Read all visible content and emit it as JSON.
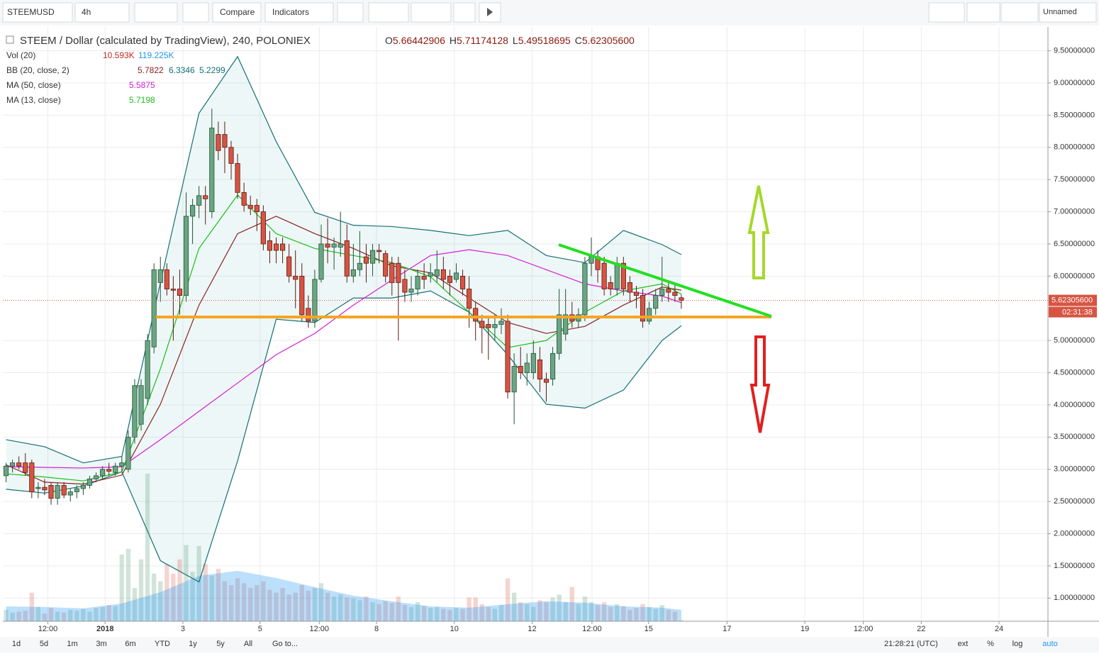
{
  "toolbar": {
    "symbol": "STEEMUSD",
    "interval": "4h",
    "compare": "Compare",
    "indicators": "Indicators",
    "layout": "Unnamed"
  },
  "chart_data": {
    "type": "candlestick",
    "title": "STEEM / Dollar (calculated by TradingView), 240, POLONIEX",
    "ohlc_letters": [
      "O",
      "H",
      "L",
      "C"
    ],
    "close_label": "5.62305600",
    "countdown": "02:31:38",
    "up_color": "#6ba583",
    "down_color": "#d75442",
    "xlim": [
      -0.5,
      162
    ],
    "ylim": [
      0.64,
      9.87
    ],
    "xticks": [
      {
        "value": 6.5,
        "label": "12:00"
      },
      {
        "value": 15.4,
        "label": "2018"
      },
      {
        "value": 27.5,
        "label": "3"
      },
      {
        "value": 39.5,
        "label": "5"
      },
      {
        "value": 48.7,
        "label": "12:00"
      },
      {
        "value": 57.6,
        "label": "8"
      },
      {
        "value": 69.7,
        "label": "10"
      },
      {
        "value": 81.8,
        "label": "12"
      },
      {
        "value": 91.1,
        "label": "12:00"
      },
      {
        "value": 99.9,
        "label": "15"
      },
      {
        "value": 112.1,
        "label": "17"
      },
      {
        "value": 124.2,
        "label": "19"
      },
      {
        "value": 133.3,
        "label": "12:00"
      },
      {
        "value": 142.3,
        "label": "22"
      },
      {
        "value": 154.4,
        "label": "24"
      }
    ],
    "yticks": [
      {
        "value": 1,
        "label": "1.00000000"
      },
      {
        "value": 1.5,
        "label": "1.50000000"
      },
      {
        "value": 2,
        "label": "2.00000000"
      },
      {
        "value": 2.5,
        "label": "2.50000000"
      },
      {
        "value": 3,
        "label": "3.00000000"
      },
      {
        "value": 3.5,
        "label": "3.50000000"
      },
      {
        "value": 4,
        "label": "4.00000000"
      },
      {
        "value": 4.5,
        "label": "4.50000000"
      },
      {
        "value": 5,
        "label": "5.00000000"
      },
      {
        "value": 6,
        "label": "6.00000000"
      },
      {
        "value": 6.5,
        "label": "6.50000000"
      },
      {
        "value": 7,
        "label": "7.00000000"
      },
      {
        "value": 7.5,
        "label": "7.50000000"
      },
      {
        "value": 8,
        "label": "8.00000000"
      },
      {
        "value": 8.5,
        "label": "8.50000000"
      },
      {
        "value": 9,
        "label": "9.00000000"
      },
      {
        "value": 9.5,
        "label": "9.50000000"
      }
    ],
    "candles": [
      [
        2.9,
        3.1,
        2.8,
        3.05
      ],
      [
        3.05,
        3.15,
        2.95,
        3.1
      ],
      [
        3.1,
        3.2,
        3.0,
        3.05
      ],
      [
        3.1,
        3.25,
        2.9,
        2.95
      ],
      [
        3.1,
        3.15,
        2.55,
        2.65
      ],
      [
        2.7,
        2.8,
        2.55,
        2.72
      ],
      [
        2.72,
        2.85,
        2.6,
        2.68
      ],
      [
        2.75,
        2.8,
        2.45,
        2.55
      ],
      [
        2.55,
        2.8,
        2.45,
        2.75
      ],
      [
        2.75,
        2.8,
        2.55,
        2.6
      ],
      [
        2.6,
        2.7,
        2.5,
        2.65
      ],
      [
        2.65,
        2.75,
        2.55,
        2.7
      ],
      [
        2.7,
        2.8,
        2.6,
        2.75
      ],
      [
        2.75,
        2.9,
        2.7,
        2.85
      ],
      [
        2.85,
        2.95,
        2.8,
        2.9
      ],
      [
        2.9,
        3.05,
        2.85,
        3.0
      ],
      [
        3.0,
        3.1,
        2.9,
        2.97
      ],
      [
        2.95,
        3.1,
        2.9,
        3.05
      ],
      [
        3.05,
        3.2,
        2.95,
        3.1
      ],
      [
        3.0,
        3.6,
        2.95,
        3.5
      ],
      [
        3.5,
        4.4,
        3.4,
        4.3
      ],
      [
        3.7,
        4.4,
        3.6,
        4.3
      ],
      [
        4.1,
        5.1,
        4.0,
        5.0
      ],
      [
        4.9,
        6.2,
        4.8,
        6.1
      ],
      [
        5.9,
        6.3,
        5.6,
        6.1
      ],
      [
        6.1,
        6.2,
        5.7,
        5.8
      ],
      [
        5.8,
        6.0,
        5.0,
        5.78
      ],
      [
        5.8,
        6.1,
        5.4,
        5.7
      ],
      [
        5.7,
        7.3,
        5.6,
        6.93
      ],
      [
        6.93,
        7.2,
        6.5,
        7.1
      ],
      [
        7.1,
        7.4,
        6.9,
        7.25
      ],
      [
        7.25,
        7.4,
        6.8,
        7.2
      ],
      [
        7.0,
        8.6,
        6.9,
        8.3
      ],
      [
        8.2,
        8.4,
        7.8,
        7.95
      ],
      [
        8.2,
        8.4,
        7.6,
        8.0
      ],
      [
        8.0,
        8.1,
        7.5,
        7.75
      ],
      [
        7.75,
        7.9,
        7.2,
        7.3
      ],
      [
        7.3,
        7.45,
        7.0,
        7.1
      ],
      [
        7.1,
        7.25,
        6.95,
        7.05
      ],
      [
        7.1,
        7.2,
        6.7,
        7.0
      ],
      [
        7.0,
        7.1,
        6.4,
        6.5
      ],
      [
        6.55,
        6.7,
        6.2,
        6.4
      ],
      [
        6.5,
        6.6,
        6.2,
        6.4
      ],
      [
        6.5,
        6.6,
        6.2,
        6.4
      ],
      [
        6.3,
        6.5,
        5.9,
        6.0
      ],
      [
        6.0,
        6.4,
        5.5,
        5.95
      ],
      [
        6.0,
        6.2,
        5.3,
        5.4
      ],
      [
        5.5,
        5.7,
        5.2,
        5.3
      ],
      [
        5.3,
        6.1,
        5.2,
        5.95
      ],
      [
        5.95,
        6.8,
        5.9,
        6.5
      ],
      [
        6.5,
        6.9,
        6.2,
        6.45
      ],
      [
        6.45,
        6.6,
        6.1,
        6.5
      ],
      [
        6.45,
        7.0,
        6.3,
        6.5
      ],
      [
        6.55,
        6.8,
        5.9,
        6.0
      ],
      [
        6.0,
        6.5,
        5.9,
        6.1
      ],
      [
        6.1,
        6.7,
        6.0,
        6.2
      ],
      [
        6.3,
        6.5,
        5.9,
        6.2
      ],
      [
        6.2,
        6.5,
        6.0,
        6.4
      ],
      [
        6.4,
        6.5,
        6.2,
        6.38
      ],
      [
        6.35,
        6.4,
        5.9,
        6.0
      ],
      [
        6.2,
        6.3,
        5.7,
        5.9
      ],
      [
        6.2,
        6.3,
        5.0,
        5.9
      ],
      [
        5.95,
        6.1,
        5.6,
        5.75
      ],
      [
        5.75,
        6.0,
        5.6,
        5.8
      ],
      [
        5.8,
        6.1,
        5.7,
        6.0
      ],
      [
        6.0,
        6.2,
        5.8,
        5.95
      ],
      [
        6.0,
        6.2,
        5.9,
        6.05
      ],
      [
        6.0,
        6.4,
        5.9,
        6.1
      ],
      [
        6.1,
        6.3,
        5.8,
        5.95
      ],
      [
        6.0,
        6.1,
        5.7,
        5.9
      ],
      [
        5.95,
        6.2,
        5.9,
        6.05
      ],
      [
        6.0,
        6.1,
        5.7,
        5.8
      ],
      [
        5.8,
        6.0,
        5.2,
        5.5
      ],
      [
        5.5,
        5.6,
        5.0,
        5.3
      ],
      [
        5.3,
        5.4,
        4.8,
        5.2
      ],
      [
        5.25,
        5.35,
        4.7,
        5.2
      ],
      [
        5.2,
        5.4,
        5.0,
        5.25
      ],
      [
        5.25,
        5.5,
        5.1,
        5.3
      ],
      [
        5.3,
        5.4,
        4.1,
        4.2
      ],
      [
        4.2,
        4.8,
        3.7,
        4.6
      ],
      [
        4.6,
        4.9,
        4.4,
        4.5
      ],
      [
        4.5,
        4.8,
        4.3,
        4.65
      ],
      [
        4.5,
        5.0,
        4.4,
        4.8
      ],
      [
        4.7,
        4.9,
        4.2,
        4.4
      ],
      [
        4.4,
        4.5,
        4.05,
        4.35
      ],
      [
        4.4,
        4.9,
        4.3,
        4.8
      ],
      [
        4.8,
        5.8,
        4.7,
        5.4
      ],
      [
        5.1,
        5.8,
        5.0,
        5.4
      ],
      [
        5.4,
        5.6,
        5.2,
        5.3
      ],
      [
        5.3,
        5.5,
        5.2,
        5.4
      ],
      [
        5.4,
        6.3,
        5.3,
        6.2
      ],
      [
        6.2,
        6.6,
        6.0,
        6.3
      ],
      [
        6.3,
        6.4,
        5.9,
        6.1
      ],
      [
        6.2,
        6.3,
        5.7,
        5.8
      ],
      [
        5.9,
        6.0,
        5.7,
        5.8
      ],
      [
        5.8,
        6.3,
        5.7,
        6.2
      ],
      [
        6.2,
        6.3,
        5.7,
        5.8
      ],
      [
        5.9,
        6.0,
        5.6,
        5.75
      ],
      [
        5.75,
        5.85,
        5.5,
        5.7
      ],
      [
        5.7,
        5.8,
        5.2,
        5.3
      ],
      [
        5.3,
        5.6,
        5.25,
        5.5
      ],
      [
        5.5,
        5.8,
        5.4,
        5.7
      ],
      [
        5.7,
        6.3,
        5.6,
        5.8
      ],
      [
        5.8,
        5.9,
        5.6,
        5.75
      ],
      [
        5.75,
        5.9,
        5.6,
        5.7
      ],
      [
        5.66442906,
        5.71174128,
        5.49518695,
        5.623056
      ]
    ],
    "volume": {
      "name": "Vol (20)",
      "color": "#c62828",
      "ylim": [
        0,
        1600000
      ],
      "values": [
        120000,
        90000,
        100000,
        110000,
        300000,
        150000,
        80000,
        140000,
        100000,
        90000,
        120000,
        110000,
        130000,
        100000,
        140000,
        150000,
        170000,
        160000,
        700000,
        760000,
        350000,
        650000,
        1550000,
        500000,
        420000,
        600000,
        500000,
        650000,
        800000,
        520000,
        790000,
        600000,
        480000,
        550000,
        420000,
        380000,
        450000,
        400000,
        350000,
        380000,
        420000,
        330000,
        300000,
        350000,
        280000,
        300000,
        380000,
        320000,
        350000,
        400000,
        300000,
        260000,
        280000,
        250000,
        240000,
        220000,
        260000,
        200000,
        180000,
        210000,
        190000,
        260000,
        170000,
        150000,
        200000,
        160000,
        140000,
        150000,
        130000,
        120000,
        140000,
        130000,
        250000,
        250000,
        180000,
        150000,
        130000,
        170000,
        450000,
        300000,
        200000,
        180000,
        150000,
        220000,
        200000,
        250000,
        280000,
        200000,
        360000,
        180000,
        260000,
        200000,
        170000,
        200000,
        150000,
        180000,
        160000,
        120000,
        140000,
        180000,
        150000,
        130000,
        170000,
        120000,
        100000,
        10593
      ],
      "value_labels": [
        null,
        null,
        null,
        null,
        null,
        null,
        null,
        null,
        null,
        null,
        null,
        null,
        null,
        null,
        null,
        null,
        null,
        null,
        null,
        null,
        null,
        null,
        null,
        null,
        null,
        null,
        null,
        null,
        null,
        null,
        null,
        null,
        null,
        null,
        null,
        null,
        null,
        null,
        null,
        null,
        null,
        null,
        null,
        null,
        null,
        null,
        null,
        null,
        null,
        null,
        null,
        null,
        null,
        null,
        null,
        null,
        null,
        null,
        null,
        null,
        null,
        null,
        null,
        null,
        null,
        null,
        null,
        null,
        null,
        null,
        null,
        null,
        null,
        null,
        null,
        null,
        null,
        null,
        null,
        null,
        null,
        null,
        null,
        null,
        null,
        null,
        null,
        null,
        null,
        null,
        null,
        null,
        null,
        null,
        null,
        null,
        null,
        null,
        null,
        null,
        null,
        null,
        null,
        null,
        null,
        "10.593K"
      ]
    },
    "volume_ma": {
      "color": "#2196f3",
      "x": [
        0,
        6,
        12,
        18,
        24,
        30,
        36,
        42,
        48,
        54,
        60,
        66,
        72,
        78,
        84,
        90,
        96,
        102,
        105
      ],
      "values": [
        156000,
        150000,
        135000,
        186000,
        305000,
        477000,
        529000,
        454000,
        358000,
        268000,
        209000,
        156000,
        142000,
        179000,
        209000,
        194000,
        156000,
        142000,
        119225
      ],
      "value_labels": [
        null,
        null,
        null,
        null,
        null,
        null,
        null,
        null,
        null,
        null,
        null,
        null,
        null,
        null,
        null,
        null,
        null,
        null,
        "119.225K"
      ]
    },
    "bb": {
      "name": "BB (20, close, 2)",
      "x": [
        0,
        6,
        12,
        18,
        24,
        30,
        36,
        42,
        48,
        54,
        60,
        66,
        72,
        78,
        84,
        90,
        96,
        102,
        105
      ],
      "basis": {
        "color": "#872323",
        "values": [
          3.07,
          2.8,
          2.77,
          2.91,
          4.01,
          5.55,
          6.66,
          6.93,
          6.66,
          6.43,
          6.16,
          6.05,
          5.66,
          5.28,
          5.11,
          5.22,
          5.55,
          5.83,
          5.7822
        ]
      },
      "upper": {
        "color": "#137074",
        "values": [
          3.46,
          3.35,
          3.1,
          3.2,
          5.9,
          8.53,
          9.41,
          8.09,
          6.99,
          6.79,
          6.77,
          6.71,
          6.63,
          6.71,
          6.32,
          6.21,
          6.71,
          6.49,
          6.3346
        ]
      },
      "lower": {
        "color": "#137074",
        "values": [
          2.69,
          2.63,
          2.74,
          2.96,
          1.58,
          1.25,
          3.13,
          5.33,
          5.28,
          5.66,
          5.66,
          5.77,
          5.44,
          4.78,
          4.01,
          3.95,
          4.23,
          5.0,
          5.2299
        ]
      }
    },
    "ma": [
      {
        "name": "MA (50, close)",
        "color": "#d41cd4",
        "x": [
          0,
          6,
          12,
          18,
          24,
          30,
          36,
          42,
          48,
          54,
          60,
          66,
          72,
          78,
          84,
          90,
          96,
          102,
          105
        ],
        "values": [
          3.04,
          3.03,
          3.02,
          3.04,
          3.46,
          3.9,
          4.34,
          4.78,
          5.11,
          5.55,
          5.94,
          6.32,
          6.41,
          6.32,
          6.1,
          5.88,
          5.77,
          5.69,
          5.5875
        ]
      },
      {
        "name": "MA (13, close)",
        "color": "#1bbf1b",
        "x": [
          0,
          6,
          12,
          18,
          24,
          30,
          36,
          42,
          48,
          54,
          60,
          66,
          72,
          78,
          84,
          90,
          96,
          102,
          105
        ],
        "values": [
          2.93,
          2.88,
          2.82,
          2.96,
          4.56,
          6.43,
          7.26,
          6.66,
          6.43,
          6.32,
          6.21,
          5.99,
          5.44,
          4.89,
          5.0,
          5.44,
          5.77,
          5.88,
          5.7198
        ]
      }
    ]
  },
  "bottom_bar": {
    "ranges": [
      "1d",
      "5d",
      "1m",
      "3m",
      "6m",
      "YTD",
      "1y",
      "5y",
      "All"
    ],
    "goto": "Go to...",
    "clock": "21:28:21 (UTC)",
    "options": [
      "ext",
      "%",
      "log",
      "auto"
    ]
  }
}
